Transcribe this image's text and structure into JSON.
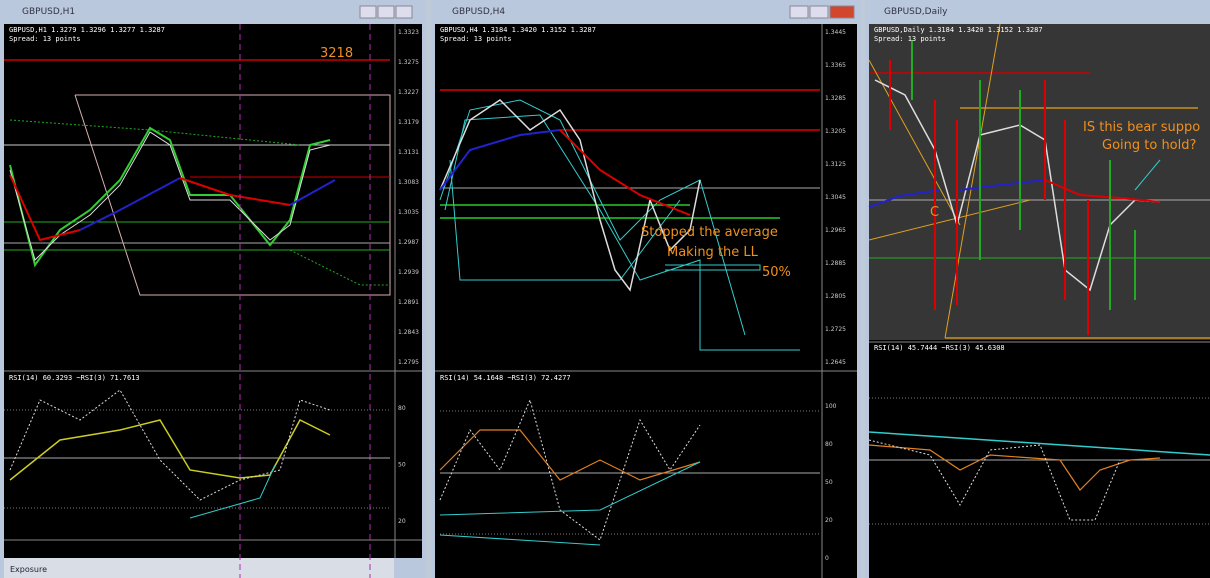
{
  "windows": [
    {
      "title": "GBPUSD,H1",
      "header": "GBPUSD,H1 1.3279 1.3296 1.3277 1.3287",
      "spread": "Spread: 13 points",
      "indicator": "RSI(14) 60.3293 ~RSI(3) 71.7613",
      "price_labels": [
        "1.3323",
        "1.3275",
        "1.3227",
        "1.3179",
        "1.3131",
        "1.3083",
        "1.3035",
        "1.2987",
        "1.2939",
        "1.2891",
        "1.2843",
        "1.2795"
      ],
      "rsi_labels": [
        "80",
        "50",
        "20"
      ],
      "footer": "Exposure"
    },
    {
      "title": "GBPUSD,H4",
      "header": "GBPUSD,H4 1.3184 1.3420 1.3152 1.3287",
      "spread": "Spread: 13 points",
      "indicator": "RSI(14) 54.1648 ~RSI(3) 72.4277",
      "price_labels": [
        "1.3445",
        "1.3365",
        "1.3285",
        "1.3205",
        "1.3125",
        "1.3045",
        "1.2965",
        "1.2885",
        "1.2805",
        "1.2725",
        "1.2645"
      ],
      "rsi_labels": [
        "100",
        "80",
        "50",
        "20",
        "0"
      ]
    },
    {
      "title": "GBPUSD,Daily",
      "header": "GBPUSD,Daily 1.3184 1.3420 1.3152 1.3287",
      "spread": "Spread: 13 points",
      "indicator": "RSI(14) 45.7444 ~RSI(3) 45.6308"
    }
  ],
  "annotations": {
    "level": "3218",
    "stopped": "Stopped the average",
    "making": "Making the LL",
    "fifty": "50%",
    "question1": "IS this bear suppo",
    "question2": "Going to hold?",
    "point": "C"
  }
}
